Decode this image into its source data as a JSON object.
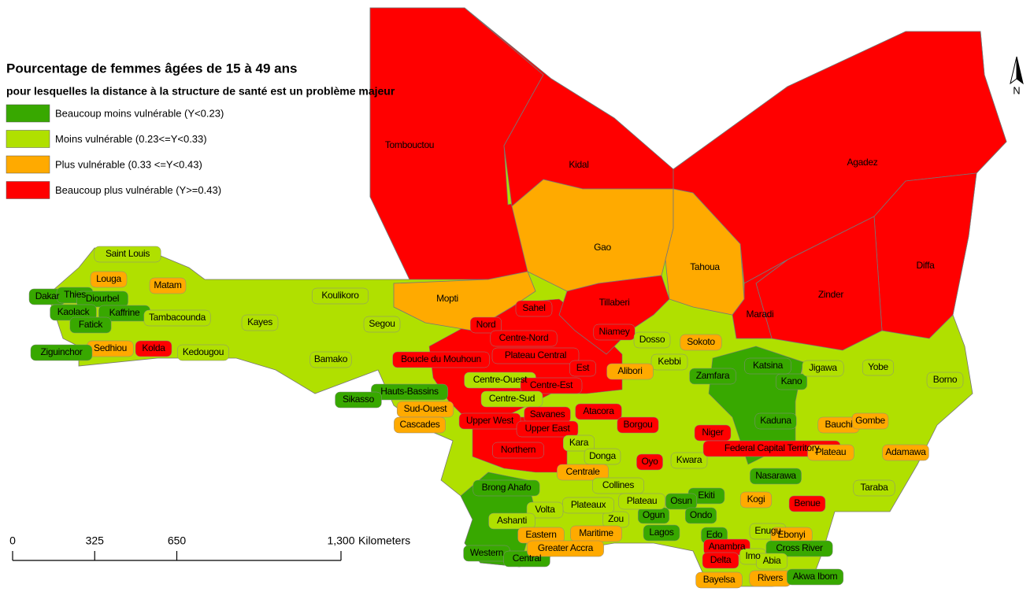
{
  "title": "Pourcentage de femmes âgées de 15 à 49 ans",
  "subtitle": "pour lesquelles la distance à la structure de santé est un problème majeur",
  "legend": [
    {
      "label": "Beaucoup moins vulnérable (Y<0.23)",
      "color": "#38a800"
    },
    {
      "label": "Moins vulnérable (0.23<=Y<0.33)",
      "color": "#b0e000"
    },
    {
      "label": "Plus vulnérable (0.33 <=Y<0.43)",
      "color": "#ffaa00"
    },
    {
      "label": "Beaucoup plus vulnérable (Y>=0.43)",
      "color": "#ff0000"
    }
  ],
  "regions": [
    {
      "name": "Tombouctou",
      "class": 3
    },
    {
      "name": "Kidal",
      "class": 3
    },
    {
      "name": "Agadez",
      "class": 3
    },
    {
      "name": "Gao",
      "class": 2
    },
    {
      "name": "Tahoua",
      "class": 2
    },
    {
      "name": "Diffa",
      "class": 3
    },
    {
      "name": "Zinder",
      "class": 3
    },
    {
      "name": "Maradi",
      "class": 3
    },
    {
      "name": "Tillaberi",
      "class": 3
    },
    {
      "name": "Mopti",
      "class": 2
    },
    {
      "name": "Niamey",
      "class": 3
    },
    {
      "name": "Dosso",
      "class": 1
    },
    {
      "name": "Sokoto",
      "class": 2
    },
    {
      "name": "Kebbi",
      "class": 1
    },
    {
      "name": "Sahel",
      "class": 3
    },
    {
      "name": "Nord",
      "class": 3
    },
    {
      "name": "Centre-Nord",
      "class": 3
    },
    {
      "name": "Plateau Central",
      "class": 3
    },
    {
      "name": "Est",
      "class": 3
    },
    {
      "name": "Boucle du Mouhoun",
      "class": 3
    },
    {
      "name": "Centre-Ouest",
      "class": 1
    },
    {
      "name": "Centre-Est",
      "class": 3
    },
    {
      "name": "Centre-Sud",
      "class": 1
    },
    {
      "name": "Hauts-Bassins",
      "class": 0
    },
    {
      "name": "Sud-Ouest",
      "class": 2
    },
    {
      "name": "Cascades",
      "class": 2
    },
    {
      "name": "Upper West",
      "class": 3
    },
    {
      "name": "Savanes",
      "class": 3
    },
    {
      "name": "Upper East",
      "class": 3
    },
    {
      "name": "Atacora",
      "class": 3
    },
    {
      "name": "Borgou",
      "class": 3
    },
    {
      "name": "Alibori",
      "class": 2
    },
    {
      "name": "Northern",
      "class": 3
    },
    {
      "name": "Kara",
      "class": 1
    },
    {
      "name": "Donga",
      "class": 1
    },
    {
      "name": "Centrale",
      "class": 2
    },
    {
      "name": "Collines",
      "class": 1
    },
    {
      "name": "Oyo",
      "class": 3
    },
    {
      "name": "Kwara",
      "class": 1
    },
    {
      "name": "Niger",
      "class": 3
    },
    {
      "name": "Federal Capital Territory",
      "class": 3
    },
    {
      "name": "Nasarawa",
      "class": 0
    },
    {
      "name": "Plateau",
      "class": 2
    },
    {
      "name": "Kaduna",
      "class": 0
    },
    {
      "name": "Kano",
      "class": 0
    },
    {
      "name": "Katsina",
      "class": 0
    },
    {
      "name": "Zamfara",
      "class": 0
    },
    {
      "name": "Jigawa",
      "class": 1
    },
    {
      "name": "Yobe",
      "class": 1
    },
    {
      "name": "Borno",
      "class": 1
    },
    {
      "name": "Bauchi",
      "class": 2
    },
    {
      "name": "Gombe",
      "class": 2
    },
    {
      "name": "Adamawa",
      "class": 2
    },
    {
      "name": "Taraba",
      "class": 1
    },
    {
      "name": "Benue",
      "class": 3
    },
    {
      "name": "Kogi",
      "class": 2
    },
    {
      "name": "Ekiti",
      "class": 0
    },
    {
      "name": "Osun",
      "class": 0
    },
    {
      "name": "Ondo",
      "class": 0
    },
    {
      "name": "Ogun",
      "class": 0
    },
    {
      "name": "Plateau",
      "class": 1
    },
    {
      "name": "Zou",
      "class": 1
    },
    {
      "name": "Plateaux",
      "class": 1
    },
    {
      "name": "Volta",
      "class": 1
    },
    {
      "name": "Maritime",
      "class": 2
    },
    {
      "name": "Lagos",
      "class": 0
    },
    {
      "name": "Brong Ahafo",
      "class": 0
    },
    {
      "name": "Ashanti",
      "class": 1
    },
    {
      "name": "Eastern",
      "class": 2
    },
    {
      "name": "Western",
      "class": 0
    },
    {
      "name": "Central",
      "class": 0
    },
    {
      "name": "Greater Accra",
      "class": 2
    },
    {
      "name": "Edo",
      "class": 0
    },
    {
      "name": "Anambra",
      "class": 3
    },
    {
      "name": "Delta",
      "class": 3
    },
    {
      "name": "Enugu",
      "class": 1
    },
    {
      "name": "Ebonyi",
      "class": 2
    },
    {
      "name": "Cross River",
      "class": 0
    },
    {
      "name": "Imo",
      "class": 1
    },
    {
      "name": "Abia",
      "class": 1
    },
    {
      "name": "Bayelsa",
      "class": 2
    },
    {
      "name": "Rivers",
      "class": 2
    },
    {
      "name": "Akwa Ibom",
      "class": 0
    },
    {
      "name": "Saint Louis",
      "class": 1
    },
    {
      "name": "Louga",
      "class": 2
    },
    {
      "name": "Matam",
      "class": 2
    },
    {
      "name": "Dakar",
      "class": 0
    },
    {
      "name": "Thies",
      "class": 0
    },
    {
      "name": "Diourbel",
      "class": 0
    },
    {
      "name": "Kaolack",
      "class": 0
    },
    {
      "name": "Kaffrine",
      "class": 0
    },
    {
      "name": "Fatick",
      "class": 0
    },
    {
      "name": "Tambacounda",
      "class": 1
    },
    {
      "name": "Kedougou",
      "class": 1
    },
    {
      "name": "Kolda",
      "class": 3
    },
    {
      "name": "Sedhiou",
      "class": 2
    },
    {
      "name": "Ziguinchor",
      "class": 0
    },
    {
      "name": "Koulikoro",
      "class": 1
    },
    {
      "name": "Kayes",
      "class": 1
    },
    {
      "name": "Segou",
      "class": 1
    },
    {
      "name": "Bamako",
      "class": 1
    },
    {
      "name": "Sikasso",
      "class": 0
    }
  ],
  "scale_bar": {
    "ticks": [
      {
        "value": 0,
        "label": "0"
      },
      {
        "value": 325,
        "label": "325"
      },
      {
        "value": 650,
        "label": "650"
      },
      {
        "value": 1300,
        "label": "1,300"
      }
    ],
    "unit": "Kilometers"
  },
  "north": "N"
}
